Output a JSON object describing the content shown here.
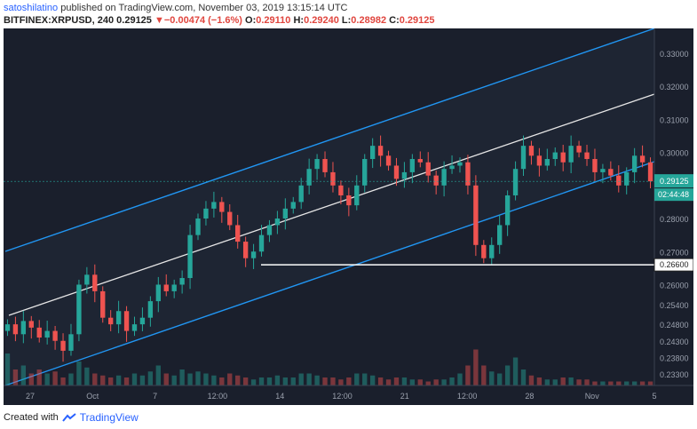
{
  "header": {
    "author": "satoshilatino",
    "published_text": "published on TradingView.com, November 03, 2019 13:15:14 UTC"
  },
  "ticker": {
    "symbol": "BITFINEX:XRPUSD, 240",
    "price": "0.29125",
    "change_symbol": "▼",
    "change": "−0.00474 (−1.6%)",
    "o_label": "O:",
    "o": "0.29110",
    "h_label": "H:",
    "h": "0.29240",
    "l_label": "L:",
    "l": "0.28982",
    "c_label": "C:",
    "c": "0.29125"
  },
  "footer": {
    "created_with": "Created with",
    "brand": "TradingView"
  },
  "colors": {
    "background": "#1a1f2c",
    "channel": "#2196f3",
    "midline": "#e6e6e6",
    "up": "#26a69a",
    "down": "#ef5350",
    "support": "#ffffff",
    "price_label": "#26a69a",
    "countdown": "#26a69a"
  },
  "chart_data": {
    "type": "candlestick",
    "symbol": "BITFINEX:XRPUSD",
    "interval": "240",
    "ylim": [
      0.2295,
      0.3375
    ],
    "y_ticks": [
      "0.33000",
      "0.32000",
      "0.31000",
      "0.30000",
      "0.28000",
      "0.27000",
      "0.26000",
      "0.25400",
      "0.24800",
      "0.24300",
      "0.23800",
      "0.23300"
    ],
    "x_ticks": [
      "27",
      "Oct",
      "7",
      "12:00",
      "14",
      "12:00",
      "21",
      "12:00",
      "28",
      "Nov",
      "5"
    ],
    "price_label": "0.29125",
    "countdown": "02:44:48",
    "support_label": "0.26600",
    "support_level": 0.266,
    "closes": [
      0.248,
      0.245,
      0.249,
      0.247,
      0.244,
      0.246,
      0.243,
      0.24,
      0.245,
      0.26,
      0.263,
      0.258,
      0.25,
      0.248,
      0.252,
      0.246,
      0.248,
      0.25,
      0.255,
      0.26,
      0.258,
      0.26,
      0.262,
      0.275,
      0.28,
      0.283,
      0.285,
      0.282,
      0.278,
      0.273,
      0.268,
      0.27,
      0.275,
      0.278,
      0.28,
      0.283,
      0.285,
      0.29,
      0.295,
      0.298,
      0.294,
      0.29,
      0.287,
      0.284,
      0.29,
      0.298,
      0.302,
      0.299,
      0.296,
      0.292,
      0.294,
      0.298,
      0.297,
      0.293,
      0.29,
      0.295,
      0.296,
      0.297,
      0.29,
      0.272,
      0.268,
      0.272,
      0.278,
      0.287,
      0.295,
      0.302,
      0.299,
      0.296,
      0.298,
      0.3,
      0.297,
      0.302,
      0.3,
      0.298,
      0.294,
      0.295,
      0.293,
      0.29,
      0.294,
      0.299,
      0.297,
      0.29125
    ],
    "volumes": [
      0.8,
      0.4,
      0.5,
      0.3,
      0.4,
      0.3,
      0.35,
      0.2,
      0.3,
      0.6,
      0.45,
      0.3,
      0.25,
      0.2,
      0.25,
      0.2,
      0.3,
      0.25,
      0.35,
      0.5,
      0.3,
      0.25,
      0.4,
      0.3,
      0.35,
      0.3,
      0.25,
      0.2,
      0.3,
      0.25,
      0.2,
      0.15,
      0.2,
      0.2,
      0.25,
      0.2,
      0.2,
      0.3,
      0.3,
      0.25,
      0.2,
      0.2,
      0.15,
      0.2,
      0.3,
      0.3,
      0.25,
      0.2,
      0.15,
      0.2,
      0.2,
      0.15,
      0.15,
      0.1,
      0.15,
      0.15,
      0.2,
      0.3,
      0.5,
      0.9,
      0.5,
      0.35,
      0.3,
      0.5,
      0.7,
      0.4,
      0.25,
      0.2,
      0.15,
      0.15,
      0.2,
      0.2,
      0.15,
      0.15,
      0.1,
      0.1,
      0.1,
      0.1,
      0.1,
      0.1,
      0.1,
      0.1
    ]
  }
}
